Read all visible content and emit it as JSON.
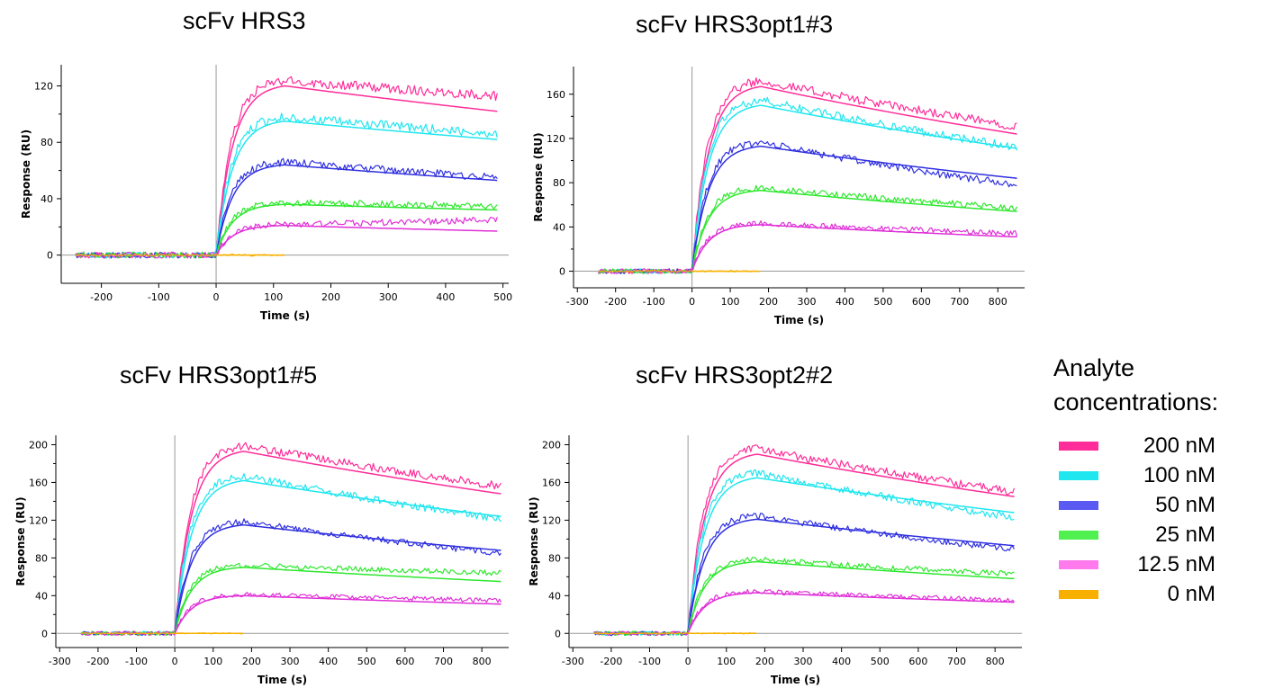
{
  "legend": {
    "title_line1": "Analyte",
    "title_line2": "concentrations:",
    "items": [
      {
        "label": "200 nM",
        "color": "#ff2d9a"
      },
      {
        "label": "100 nM",
        "color": "#1fe6ef"
      },
      {
        "label": "50 nM",
        "color": "#5a5af2"
      },
      {
        "label": "25 nM",
        "color": "#4ff04f"
      },
      {
        "label": "12.5 nM",
        "color": "#ff7aec"
      },
      {
        "label": "0 nM",
        "color": "#f7b000"
      }
    ]
  },
  "chart_data": [
    {
      "type": "line",
      "title": "scFv HRS3",
      "xlabel": "Time (s)",
      "ylabel": "Response (RU)",
      "xlim": [
        -270,
        510
      ],
      "ylim": [
        -20,
        135
      ],
      "xticks": [
        -200,
        -100,
        0,
        100,
        200,
        300,
        400,
        500
      ],
      "yticks": [
        0,
        40,
        80,
        120
      ],
      "x_start": -245,
      "injection_end": 120,
      "x_end": 490,
      "legend": "shared, right",
      "series": [
        {
          "name": "200 nM",
          "color": "#ff2d9a",
          "fit_peak": 120,
          "fit_end": 102,
          "measured_end": 113
        },
        {
          "name": "100 nM",
          "color": "#1fe6ef",
          "fit_peak": 95,
          "fit_end": 82,
          "measured_end": 86
        },
        {
          "name": "50 nM",
          "color": "#3030e0",
          "fit_peak": 64,
          "fit_end": 53,
          "measured_end": 55
        },
        {
          "name": "25 nM",
          "color": "#2ee82e",
          "fit_peak": 36,
          "fit_end": 32,
          "measured_end": 35
        },
        {
          "name": "12.5 nM",
          "color": "#e030d8",
          "fit_peak": 21,
          "fit_end": 17,
          "measured_end": 25
        },
        {
          "name": "0 nM",
          "color": "#f7b000",
          "fit_peak": 0,
          "fit_end": 0,
          "measured_end": 0
        }
      ]
    },
    {
      "type": "line",
      "title": "scFv HRS3opt1#3",
      "xlabel": "Time (s)",
      "ylabel": "Response (RU)",
      "xlim": [
        -310,
        870
      ],
      "ylim": [
        -15,
        185
      ],
      "xticks": [
        -300,
        -200,
        -100,
        0,
        100,
        200,
        300,
        400,
        500,
        600,
        700,
        800
      ],
      "yticks": [
        0,
        40,
        80,
        120,
        160
      ],
      "x_start": -245,
      "injection_end": 180,
      "x_end": 850,
      "legend": "shared, right",
      "series": [
        {
          "name": "200 nM",
          "color": "#ff2d9a",
          "fit_peak": 167,
          "fit_end": 124,
          "measured_end": 131
        },
        {
          "name": "100 nM",
          "color": "#1fe6ef",
          "fit_peak": 150,
          "fit_end": 111,
          "measured_end": 112
        },
        {
          "name": "50 nM",
          "color": "#3030e0",
          "fit_peak": 113,
          "fit_end": 84,
          "measured_end": 78
        },
        {
          "name": "25 nM",
          "color": "#2ee82e",
          "fit_peak": 73,
          "fit_end": 54,
          "measured_end": 57
        },
        {
          "name": "12.5 nM",
          "color": "#e030d8",
          "fit_peak": 42,
          "fit_end": 31,
          "measured_end": 34
        },
        {
          "name": "0 nM",
          "color": "#f7b000",
          "fit_peak": 0,
          "fit_end": 0,
          "measured_end": 0
        }
      ]
    },
    {
      "type": "line",
      "title": "scFv HRS3opt1#5",
      "xlabel": "Time (s)",
      "ylabel": "Response (RU)",
      "xlim": [
        -310,
        870
      ],
      "ylim": [
        -15,
        210
      ],
      "xticks": [
        -300,
        -200,
        -100,
        0,
        100,
        200,
        300,
        400,
        500,
        600,
        700,
        800
      ],
      "yticks": [
        0,
        40,
        80,
        120,
        160,
        200
      ],
      "x_start": -245,
      "injection_end": 180,
      "x_end": 850,
      "legend": "shared, right",
      "series": [
        {
          "name": "200 nM",
          "color": "#ff2d9a",
          "fit_peak": 193,
          "fit_end": 148,
          "measured_end": 156
        },
        {
          "name": "100 nM",
          "color": "#1fe6ef",
          "fit_peak": 162,
          "fit_end": 124,
          "measured_end": 121
        },
        {
          "name": "50 nM",
          "color": "#3030e0",
          "fit_peak": 115,
          "fit_end": 88,
          "measured_end": 85
        },
        {
          "name": "25 nM",
          "color": "#2ee82e",
          "fit_peak": 70,
          "fit_end": 55,
          "measured_end": 64
        },
        {
          "name": "12.5 nM",
          "color": "#e030d8",
          "fit_peak": 40,
          "fit_end": 31,
          "measured_end": 35
        },
        {
          "name": "0 nM",
          "color": "#f7b000",
          "fit_peak": 0,
          "fit_end": 0,
          "measured_end": 0
        }
      ]
    },
    {
      "type": "line",
      "title": "scFv HRS3opt2#2",
      "xlabel": "Time (s)",
      "ylabel": "Response (RU)",
      "xlim": [
        -310,
        870
      ],
      "ylim": [
        -15,
        210
      ],
      "xticks": [
        -300,
        -200,
        -100,
        0,
        100,
        200,
        300,
        400,
        500,
        600,
        700,
        800
      ],
      "yticks": [
        0,
        40,
        80,
        120,
        160,
        200
      ],
      "x_start": -245,
      "injection_end": 180,
      "x_end": 850,
      "legend": "shared, right",
      "series": [
        {
          "name": "200 nM",
          "color": "#ff2d9a",
          "fit_peak": 190,
          "fit_end": 145,
          "measured_end": 150
        },
        {
          "name": "100 nM",
          "color": "#1fe6ef",
          "fit_peak": 165,
          "fit_end": 128,
          "measured_end": 123
        },
        {
          "name": "50 nM",
          "color": "#3030e0",
          "fit_peak": 121,
          "fit_end": 93,
          "measured_end": 89
        },
        {
          "name": "25 nM",
          "color": "#2ee82e",
          "fit_peak": 76,
          "fit_end": 58,
          "measured_end": 63
        },
        {
          "name": "12.5 nM",
          "color": "#e030d8",
          "fit_peak": 43,
          "fit_end": 33,
          "measured_end": 35
        },
        {
          "name": "0 nM",
          "color": "#f7b000",
          "fit_peak": 0,
          "fit_end": 0,
          "measured_end": 0
        }
      ]
    }
  ]
}
